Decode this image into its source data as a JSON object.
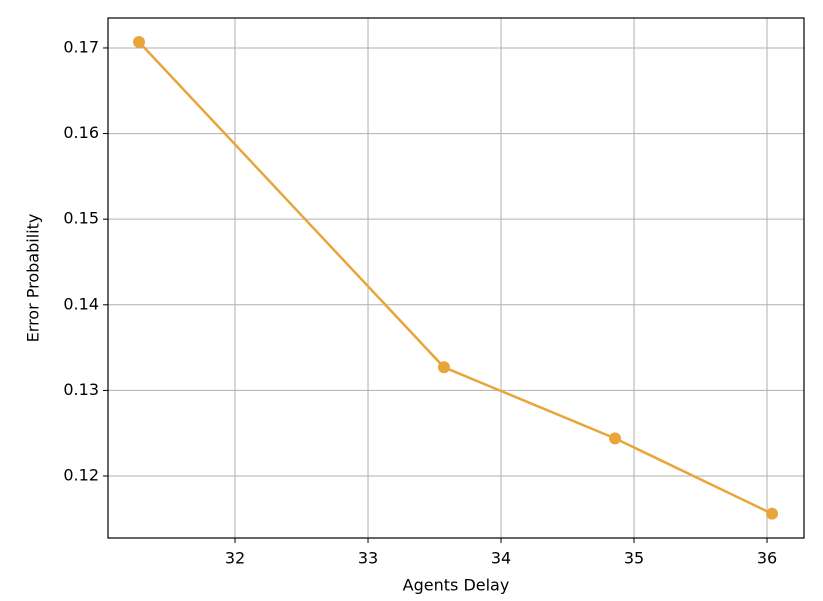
{
  "chart_data": {
    "type": "line",
    "x_label": "Agents Delay",
    "y_label": "Error Probability",
    "x": [
      31.278,
      33.571,
      34.857,
      36.038
    ],
    "series": [
      {
        "name": "Error Probability",
        "color": "#e9a53a",
        "values": [
          0.1707,
          0.1327,
          0.1244,
          0.1156
        ]
      }
    ],
    "xlim": [
      31.045,
      36.278
    ],
    "xticks": [
      32,
      33,
      34,
      35,
      36
    ],
    "ylim": [
      0.11276,
      0.1735
    ],
    "yticks": [
      0.12,
      0.13,
      0.14,
      0.15,
      0.16,
      0.17
    ],
    "grid": true
  }
}
